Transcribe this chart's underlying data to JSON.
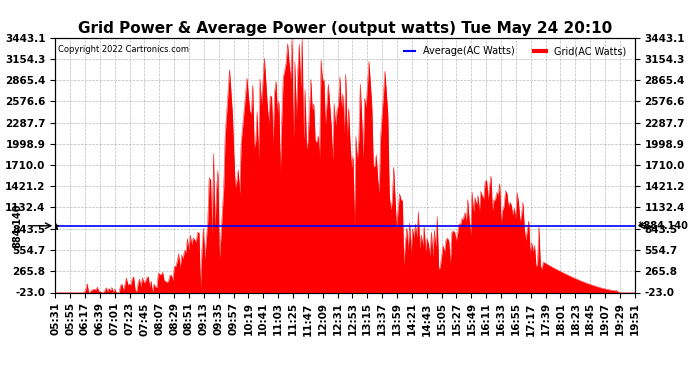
{
  "title": "Grid Power & Average Power (output watts) Tue May 24 20:10",
  "copyright_text": "Copyright 2022 Cartronics.com",
  "legend_average": "Average(AC Watts)",
  "legend_grid": "Grid(AC Watts)",
  "average_value": 884.14,
  "y_ticks": [
    3443.1,
    3154.3,
    2865.4,
    2576.6,
    2287.7,
    1998.9,
    1710.0,
    1421.2,
    1132.4,
    843.5,
    554.7,
    265.8,
    -23.0
  ],
  "ylim_min": -23.0,
  "ylim_max": 3443.1,
  "background_color": "#ffffff",
  "fill_color": "#ff0000",
  "average_line_color": "#0000ff",
  "grid_color": "#aaaaaa",
  "title_fontsize": 11,
  "tick_label_fontsize": 7.5,
  "x_tick_labels": [
    "05:31",
    "05:55",
    "06:17",
    "06:39",
    "07:01",
    "07:23",
    "07:45",
    "08:07",
    "08:29",
    "08:51",
    "09:13",
    "09:35",
    "09:57",
    "10:19",
    "10:41",
    "11:03",
    "11:25",
    "11:47",
    "12:09",
    "12:31",
    "12:53",
    "13:15",
    "13:37",
    "13:59",
    "14:21",
    "14:43",
    "15:05",
    "15:27",
    "15:49",
    "16:11",
    "16:33",
    "16:55",
    "17:17",
    "17:39",
    "18:01",
    "18:23",
    "18:45",
    "19:07",
    "19:29",
    "19:51"
  ],
  "num_points": 400
}
